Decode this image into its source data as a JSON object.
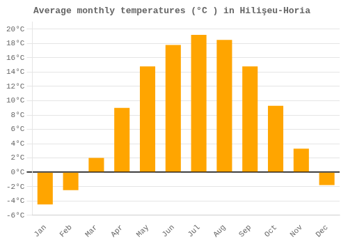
{
  "chart_data": {
    "type": "bar",
    "title": "Average monthly temperatures (°C ) in Hilişeu-Horia",
    "categories": [
      "Jan",
      "Feb",
      "Mar",
      "Apr",
      "May",
      "Jun",
      "Jul",
      "Aug",
      "Sep",
      "Oct",
      "Nov",
      "Dec"
    ],
    "values": [
      -4.5,
      -2.5,
      2.0,
      9.0,
      14.8,
      17.8,
      19.2,
      18.5,
      14.8,
      9.3,
      3.3,
      -1.8
    ],
    "color": "#FFA500",
    "ylim": [
      -6,
      21
    ],
    "yticks": [
      {
        "value": -6,
        "label": "-6°C"
      },
      {
        "value": -4,
        "label": "-4°C"
      },
      {
        "value": -2,
        "label": "-2°C"
      },
      {
        "value": 0,
        "label": "0°C"
      },
      {
        "value": 2,
        "label": "2°C"
      },
      {
        "value": 4,
        "label": "4°C"
      },
      {
        "value": 6,
        "label": "6°C"
      },
      {
        "value": 8,
        "label": "8°C"
      },
      {
        "value": 10,
        "label": "10°C"
      },
      {
        "value": 12,
        "label": "12°C"
      },
      {
        "value": 14,
        "label": "14°C"
      },
      {
        "value": 16,
        "label": "16°C"
      },
      {
        "value": 18,
        "label": "18°C"
      },
      {
        "value": 20,
        "label": "20°C"
      }
    ],
    "grid": true
  }
}
